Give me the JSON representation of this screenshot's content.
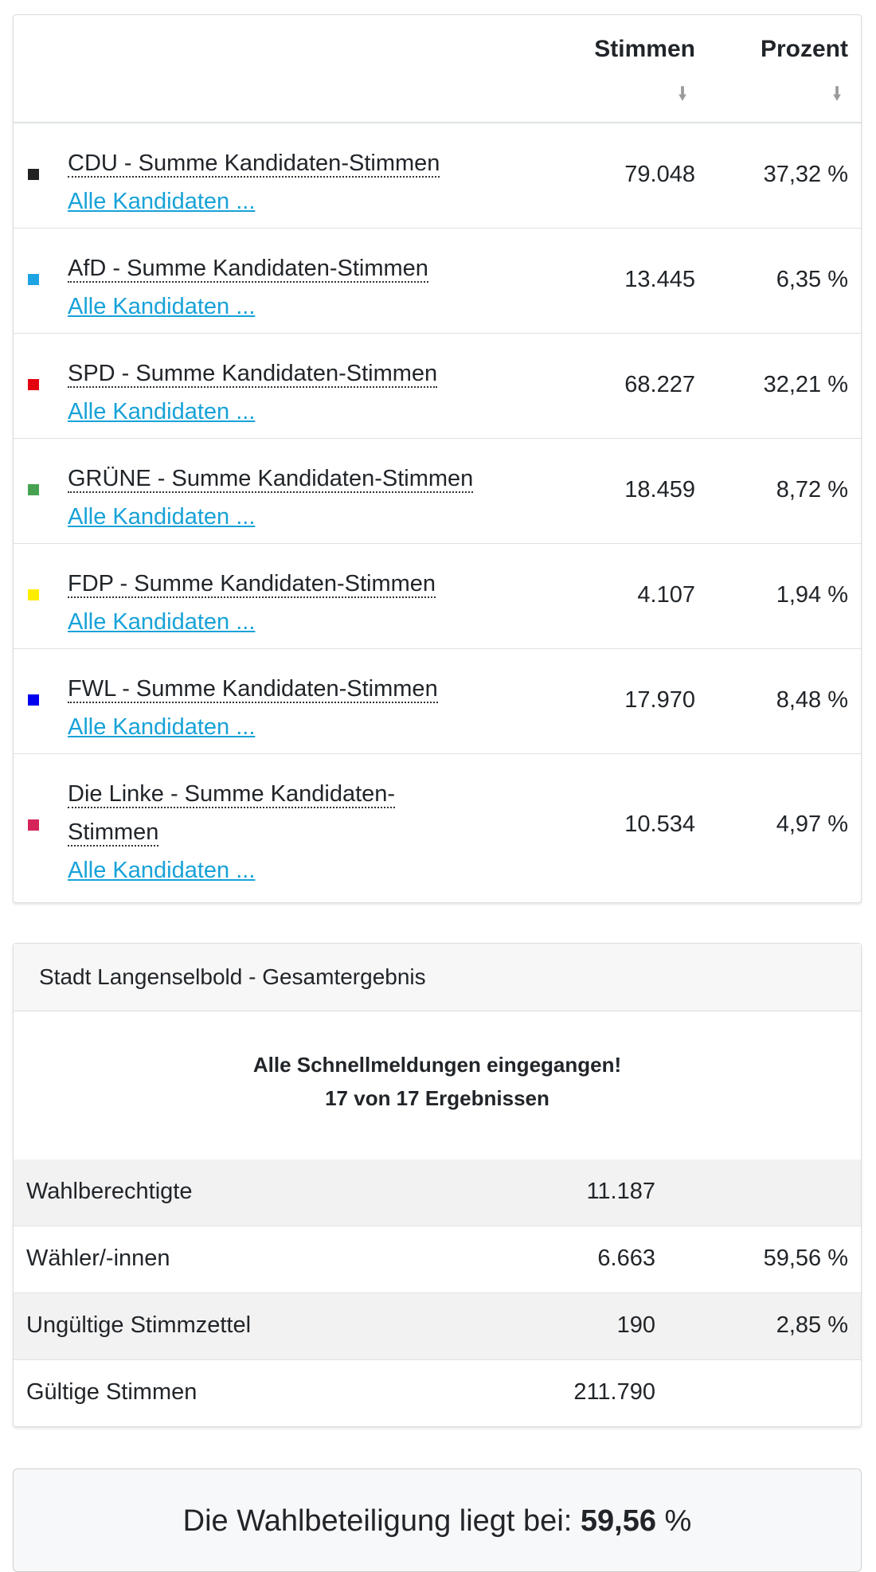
{
  "table": {
    "header": {
      "stimmen": "Stimmen",
      "prozent": "Prozent"
    },
    "rows": [
      {
        "name": "CDU - Summe Kandidaten-Stimmen",
        "link": "Alle Kandidaten ...",
        "stimmen": "79.048",
        "prozent": "37,32 %",
        "color": "#222222"
      },
      {
        "name": "AfD - Summe Kandidaten-Stimmen",
        "link": "Alle Kandidaten ...",
        "stimmen": "13.445",
        "prozent": "6,35 %",
        "color": "#1ea3e3"
      },
      {
        "name": "SPD - Summe Kandidaten-Stimmen",
        "link": "Alle Kandidaten ...",
        "stimmen": "68.227",
        "prozent": "32,21 %",
        "color": "#e3000f"
      },
      {
        "name": "GRÜNE - Summe Kandidaten-Stimmen",
        "link": "Alle Kandidaten ...",
        "stimmen": "18.459",
        "prozent": "8,72 %",
        "color": "#46a150"
      },
      {
        "name": "FDP - Summe Kandidaten-Stimmen",
        "link": "Alle Kandidaten ...",
        "stimmen": "4.107",
        "prozent": "1,94 %",
        "color": "#ffed00"
      },
      {
        "name": "FWL - Summe Kandidaten-Stimmen",
        "link": "Alle Kandidaten ...",
        "stimmen": "17.970",
        "prozent": "8,48 %",
        "color": "#0000ee"
      },
      {
        "name": "Die Linke - Summe Kandidaten-Stimmen",
        "link": "Alle Kandidaten ...",
        "stimmen": "10.534",
        "prozent": "4,97 %",
        "color": "#d6245a"
      }
    ]
  },
  "summary": {
    "title": "Stadt Langenselbold - Gesamtergebnis",
    "note_line1": "Alle Schnellmeldungen eingegangen!",
    "note_line2": "17 von 17 Ergebnissen",
    "rows": [
      {
        "label": "Wahlberechtigte",
        "value": "11.187",
        "percent": ""
      },
      {
        "label": "Wähler/-innen",
        "value": "6.663",
        "percent": "59,56 %"
      },
      {
        "label": "Ungültige Stimmzettel",
        "value": "190",
        "percent": "2,85 %"
      },
      {
        "label": "Gültige Stimmen",
        "value": "211.790",
        "percent": ""
      }
    ]
  },
  "turnout": {
    "prefix": "Die Wahlbeteiligung liegt bei:",
    "value": "59,56",
    "suffix": "%"
  }
}
